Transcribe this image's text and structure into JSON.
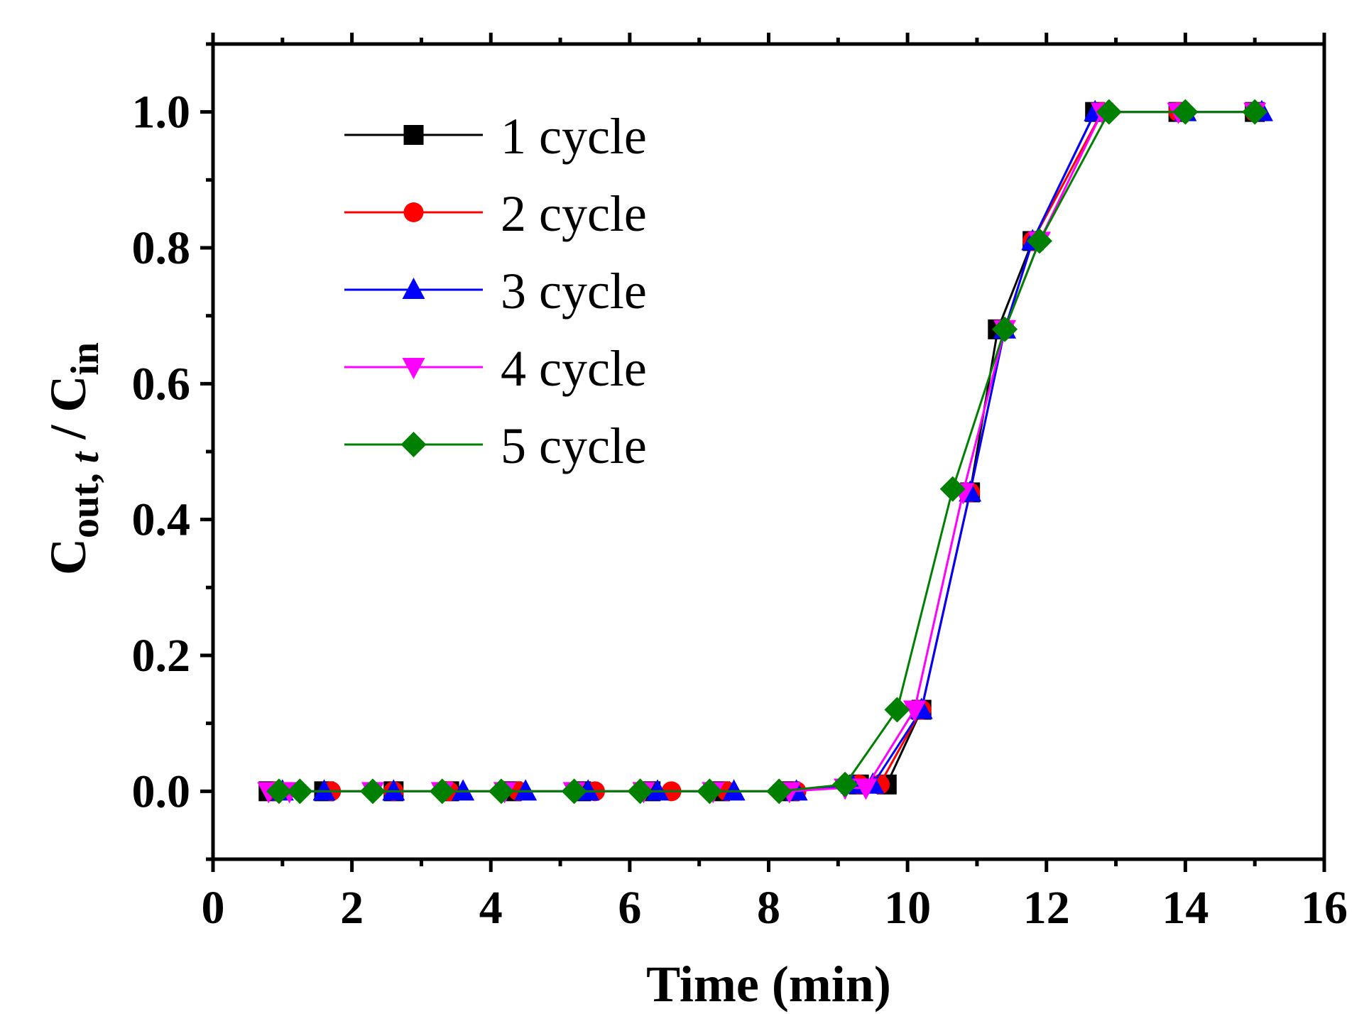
{
  "chart_data": {
    "type": "line",
    "title": "",
    "xlabel": "Time (min)",
    "ylabel": {
      "main": "C",
      "sub1": "out, ",
      "italic": "t",
      "sep": " / C",
      "sub2": "in"
    },
    "xlim": [
      0,
      16
    ],
    "ylim": [
      -0.1,
      1.1
    ],
    "x_ticks": [
      0,
      2,
      4,
      6,
      8,
      10,
      12,
      14,
      16
    ],
    "x_tick_labels": [
      "0",
      "2",
      "4",
      "6",
      "8",
      "10",
      "12",
      "14",
      "16"
    ],
    "y_ticks": [
      0.0,
      0.2,
      0.4,
      0.6,
      0.8,
      1.0
    ],
    "y_tick_labels": [
      "0.0",
      "0.2",
      "0.4",
      "0.6",
      "0.8",
      "1.0"
    ],
    "grid": false,
    "legend_position": "top-left",
    "series": [
      {
        "name": "1 cycle",
        "color": "#000000",
        "marker": "square",
        "x": [
          0.8,
          1.6,
          2.6,
          3.4,
          4.3,
          5.3,
          6.3,
          7.3,
          8.3,
          9.3,
          9.7,
          10.2,
          10.9,
          11.3,
          11.8,
          12.7,
          13.9,
          15.0
        ],
        "y": [
          0,
          0,
          0,
          0,
          0,
          0,
          0,
          0,
          0,
          0.01,
          0.01,
          0.12,
          0.44,
          0.68,
          0.81,
          1.0,
          1.0,
          1.0
        ]
      },
      {
        "name": "2 cycle",
        "color": "#ff0000",
        "marker": "circle",
        "x": [
          0.9,
          1.7,
          2.6,
          3.4,
          4.4,
          5.5,
          6.6,
          7.4,
          8.4,
          9.3,
          9.6,
          10.2,
          10.9,
          11.4,
          11.8,
          12.8,
          13.9,
          15.0
        ],
        "y": [
          0,
          0,
          0,
          0,
          0,
          0,
          0,
          0,
          0,
          0.01,
          0.01,
          0.12,
          0.44,
          0.68,
          0.81,
          1.0,
          1.0,
          1.0
        ]
      },
      {
        "name": "3 cycle",
        "color": "#0000ff",
        "marker": "triangle-up",
        "x": [
          1.0,
          1.6,
          2.6,
          3.6,
          4.5,
          5.4,
          6.4,
          7.5,
          8.4,
          9.2,
          9.5,
          10.2,
          10.9,
          11.4,
          11.8,
          12.7,
          14.0,
          15.1
        ],
        "y": [
          0,
          0,
          0,
          0,
          0,
          0,
          0,
          0,
          0,
          0.01,
          0.01,
          0.12,
          0.44,
          0.68,
          0.81,
          1.0,
          1.0,
          1.0
        ]
      },
      {
        "name": "4 cycle",
        "color": "#ff00ff",
        "marker": "triangle-down",
        "x": [
          0.8,
          1.1,
          2.3,
          3.3,
          4.2,
          5.2,
          6.2,
          7.2,
          8.3,
          9.1,
          9.4,
          10.1,
          10.8,
          11.4,
          11.9,
          12.8,
          13.9,
          15.0
        ],
        "y": [
          0,
          0,
          0,
          0,
          0,
          0,
          0,
          0,
          0,
          0.005,
          0.005,
          0.12,
          0.44,
          0.68,
          0.81,
          1.0,
          1.0,
          1.0
        ]
      },
      {
        "name": "5 cycle",
        "color": "#008000",
        "marker": "diamond",
        "x": [
          0.95,
          1.25,
          2.3,
          3.3,
          4.15,
          5.2,
          6.15,
          7.15,
          8.15,
          9.1,
          9.85,
          10.65,
          11.4,
          11.9,
          12.9,
          14.0,
          15.0
        ],
        "y": [
          0,
          0,
          0,
          0,
          0,
          0,
          0,
          0,
          0,
          0.01,
          0.12,
          0.445,
          0.68,
          0.81,
          1.0,
          1.0,
          1.0
        ]
      }
    ]
  }
}
